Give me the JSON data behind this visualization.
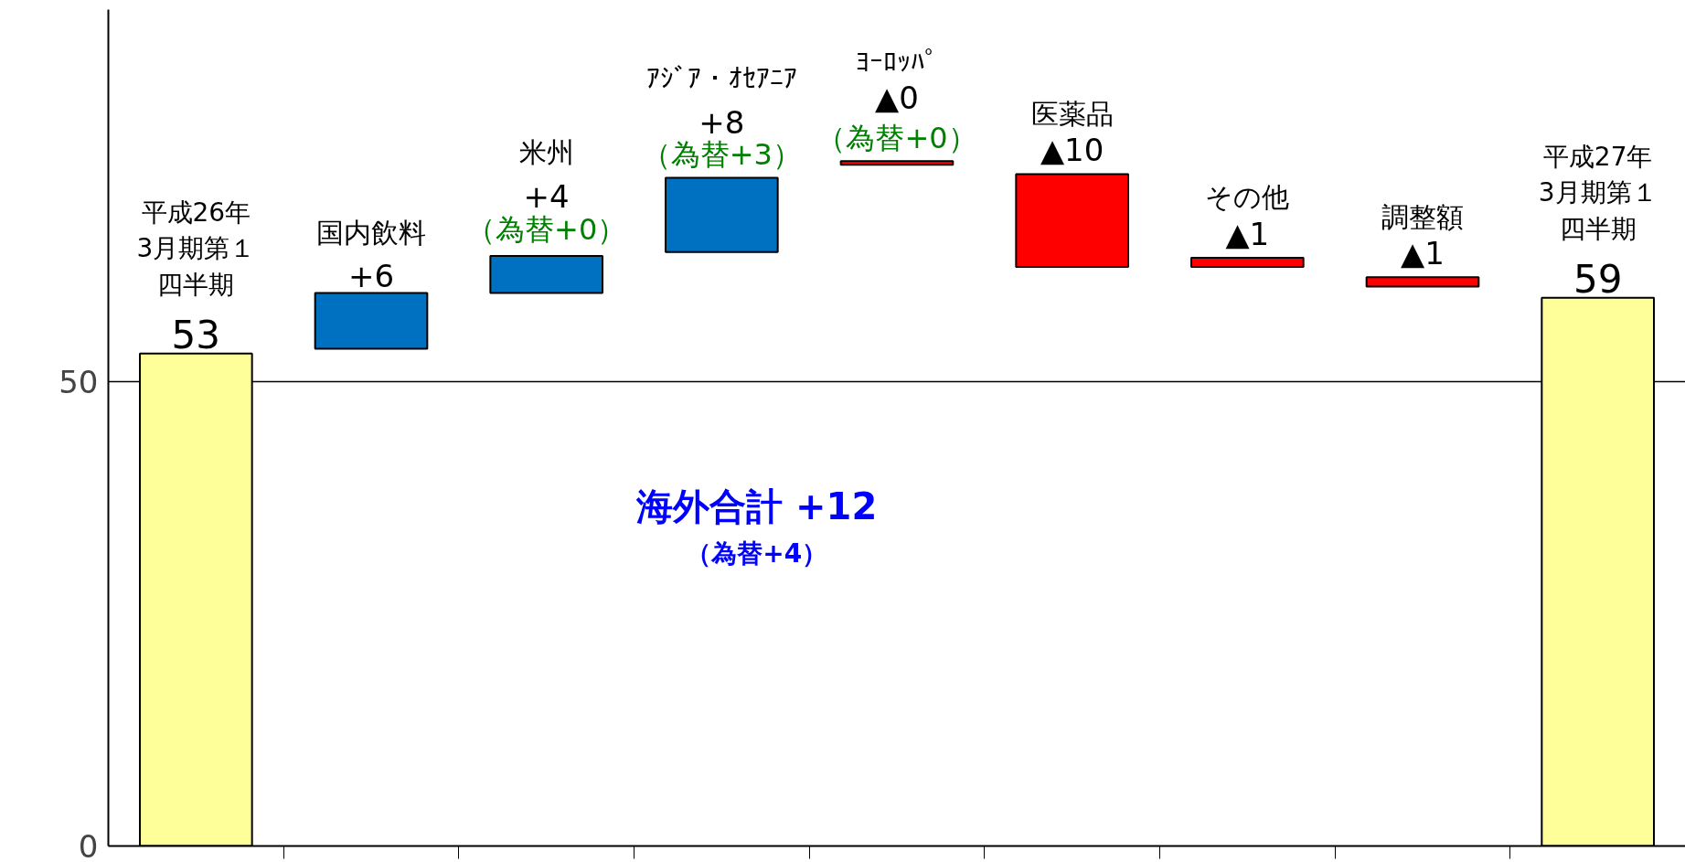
{
  "chart_data": {
    "type": "bar",
    "categories": [
      "平成26年3月期第１四半期",
      "国内飲料",
      "米州",
      "ｱｼﾞｱ・ｵｾｱﾆｱ",
      "ﾖｰﾛｯﾊﾟ",
      "医薬品",
      "その他",
      "調整額",
      "平成27年3月期第１四半期"
    ],
    "values": [
      53,
      6,
      4,
      8,
      -0.4,
      -10,
      -1,
      -1,
      59
    ],
    "base": [
      0,
      53.5,
      59.5,
      63.9,
      73.7,
      72.3,
      63.3,
      61.2,
      0
    ],
    "colors": [
      "#ffff99",
      "#0070c0",
      "#0070c0",
      "#0070c0",
      "#ff0000",
      "#ff0000",
      "#ff0000",
      "#ff0000",
      "#ffff99"
    ],
    "value_labels": [
      "53",
      "+6",
      "+4",
      "+8",
      "▲0",
      "▲10",
      "▲1",
      "▲1",
      "59"
    ],
    "annotations": [
      {
        "text": "（為替+0）",
        "x": "米州",
        "y": 63.9
      },
      {
        "text": "（為替+3）",
        "x": "ｱｼﾞｱ・ｵｾｱﾆｱ",
        "y": 71.9
      },
      {
        "text": "（為替+0）",
        "x": "ﾖｰﾛｯﾊﾟ",
        "y": 73.7
      },
      "海外合計 +12",
      "（為替+4）"
    ],
    "ylim": [
      0,
      90
    ],
    "yticks": [
      0,
      50
    ],
    "grid": "y",
    "tick_labels": "y"
  }
}
